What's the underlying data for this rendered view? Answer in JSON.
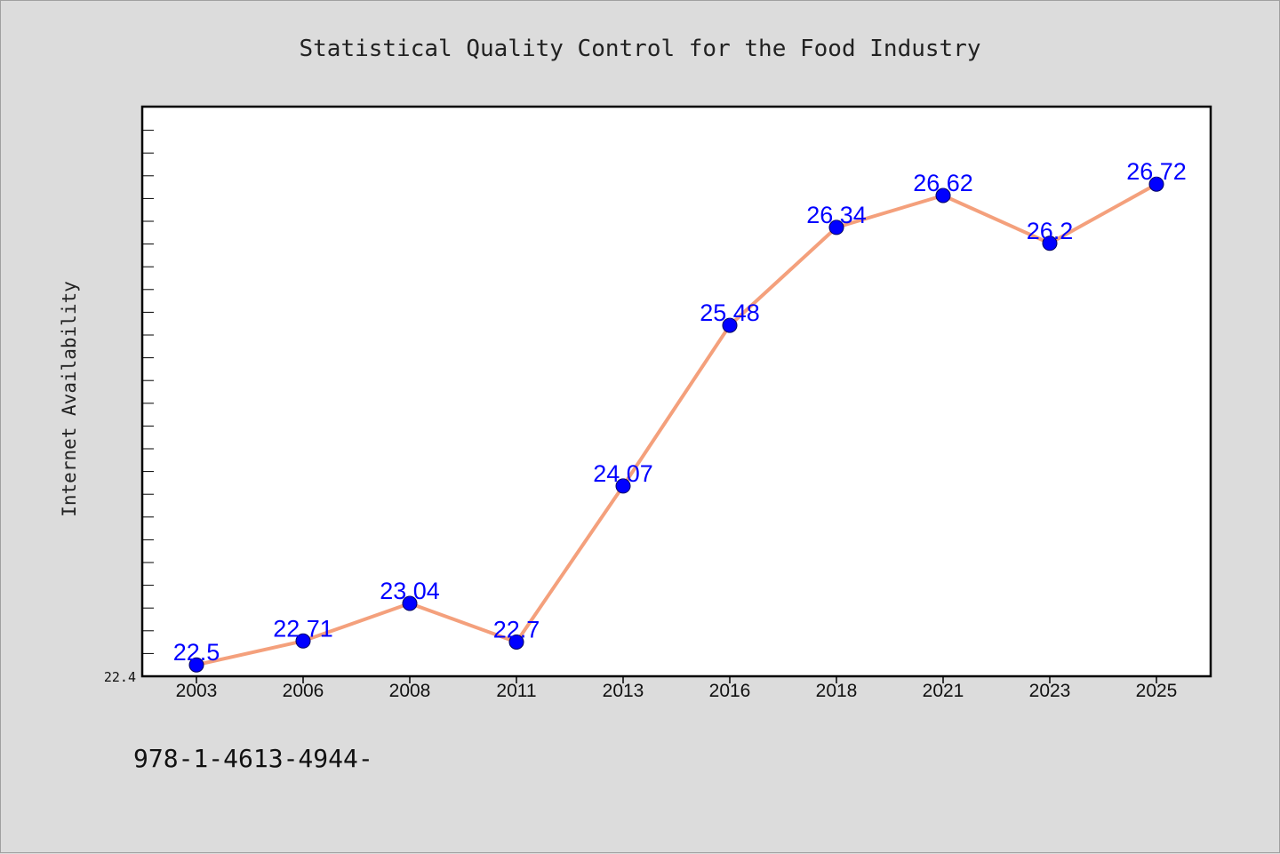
{
  "chart_data": {
    "type": "line",
    "title": "Statistical Quality Control for the Food Industry",
    "ylabel": "Internet Availability",
    "xlabel": "",
    "categories": [
      "2003",
      "2006",
      "2008",
      "2011",
      "2013",
      "2016",
      "2018",
      "2021",
      "2023",
      "2025"
    ],
    "values": [
      22.5,
      22.71,
      23.04,
      22.7,
      24.07,
      25.48,
      26.34,
      26.62,
      26.2,
      26.72
    ],
    "data_labels": [
      "22.5",
      "22.71",
      "23.04",
      "22.7",
      "24.07",
      "25.48",
      "26.34",
      "26.62",
      "26.2",
      "26.72"
    ],
    "ylim": [
      22.4,
      27.4
    ],
    "y_tick_labels": [
      "22.4"
    ],
    "grid": false,
    "legend": "none",
    "line_color": "#f4a07c",
    "marker_color": "#0000ff",
    "label_color": "#0000ff"
  },
  "footer": {
    "isbn": "978-1-4613-4944-"
  }
}
